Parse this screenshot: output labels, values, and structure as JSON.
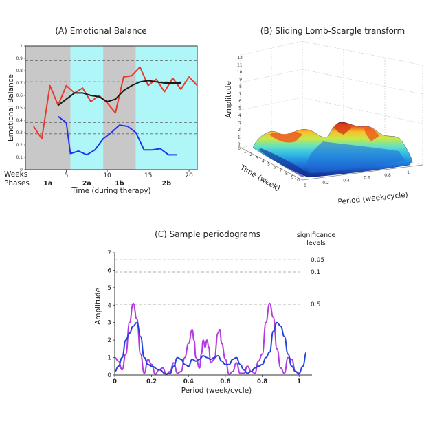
{
  "chart_data": [
    {
      "panel": "A",
      "type": "line",
      "title": "(A) Emotional Balance",
      "xlabel": "Time (during therapy)",
      "ylabel": "Emotional Balance",
      "xlim": [
        0,
        21
      ],
      "ylim": [
        0,
        1
      ],
      "row_labels": {
        "weeks": "Weeks",
        "phases": "Phases"
      },
      "x_ticks": [
        5,
        10,
        15,
        20
      ],
      "y_ticks": [
        "0",
        "0.1",
        "0.2",
        "0.3",
        "0.4",
        "0.5",
        "0.6",
        "0.7",
        "0.8",
        "0.9",
        "1"
      ],
      "phases": [
        {
          "label": "1a",
          "start": 0,
          "end": 5.5,
          "color": "#c8c8c8"
        },
        {
          "label": "2a",
          "start": 5.5,
          "end": 9.5,
          "color": "#aff6f8"
        },
        {
          "label": "1b",
          "start": 9.5,
          "end": 13.5,
          "color": "#c8c8c8"
        },
        {
          "label": "2b",
          "start": 13.5,
          "end": 21,
          "color": "#aff6f8"
        }
      ],
      "dashed_lines": [
        0.29,
        0.38,
        0.62,
        0.71,
        0.88
      ],
      "series": [
        {
          "color": "#e83a2c",
          "x": [
            1,
            2,
            3,
            4,
            5,
            6,
            7,
            8,
            9,
            10,
            11,
            12,
            13,
            14,
            15,
            16,
            17,
            18,
            19,
            20,
            21
          ],
          "y": [
            0.35,
            0.25,
            0.68,
            0.52,
            0.68,
            0.62,
            0.66,
            0.55,
            0.6,
            0.54,
            0.46,
            0.75,
            0.76,
            0.83,
            0.68,
            0.73,
            0.63,
            0.74,
            0.65,
            0.75,
            0.68
          ]
        },
        {
          "color": "#1a1a1a",
          "x": [
            4,
            5,
            6,
            7,
            8,
            9,
            10,
            11,
            12,
            13,
            14,
            15,
            16,
            17,
            18,
            19
          ],
          "y": [
            0.52,
            0.57,
            0.62,
            0.62,
            0.6,
            0.59,
            0.55,
            0.57,
            0.64,
            0.68,
            0.71,
            0.72,
            0.71,
            0.7,
            0.7,
            0.7
          ]
        },
        {
          "color": "#2233ee",
          "x": [
            4,
            5,
            5.5,
            6.5,
            7.5,
            8.5,
            9.5,
            10.5,
            11.5,
            12.5,
            13.5,
            14.5,
            15.5,
            16.5,
            17.5,
            18.5
          ],
          "y": [
            0.43,
            0.38,
            0.13,
            0.15,
            0.12,
            0.16,
            0.25,
            0.3,
            0.36,
            0.35,
            0.3,
            0.16,
            0.16,
            0.17,
            0.12,
            0.12
          ]
        }
      ]
    },
    {
      "panel": "B",
      "type": "surface",
      "title": "(B) Sliding Lomb-Scargle transform",
      "xlabel": "Period (week/cycle)",
      "ylabel": "Time (week)",
      "zlabel": "Amplitude",
      "x_ticks": [
        "0",
        "0.2",
        "0.4",
        "0.6",
        "0.8",
        "1"
      ],
      "z_ticks": [
        "12",
        "11",
        "10",
        "9",
        "8",
        "7",
        "6",
        "5",
        "4",
        "3",
        "2",
        "1",
        "0"
      ],
      "time_ticks": [
        "0",
        "1",
        "2",
        "3",
        "4",
        "5",
        "6",
        "7",
        "8",
        "9",
        "10"
      ],
      "colormap": [
        "#102a8a",
        "#1f6bd6",
        "#2fb3e8",
        "#5ee0c8",
        "#c6e94b",
        "#f6c12c",
        "#ee5a1e",
        "#9b1a12"
      ]
    },
    {
      "panel": "C",
      "type": "line",
      "title": "(C) Sample periodograms",
      "xlabel": "Period (week/cycle)",
      "ylabel": "Amplitude",
      "xlim": [
        0,
        1.07
      ],
      "ylim": [
        0,
        7
      ],
      "x_ticks": [
        {
          "value": 0,
          "label": "0"
        },
        {
          "value": 0.2,
          "label": "0.2"
        },
        {
          "value": 0.4,
          "label": "0.4"
        },
        {
          "value": 0.6,
          "label": "0.6"
        },
        {
          "value": 0.8,
          "label": "0.8"
        },
        {
          "value": 1,
          "label": "1"
        }
      ],
      "y_ticks": [
        "0",
        "1",
        "2",
        "3",
        "4",
        "5",
        "6",
        "7"
      ],
      "significance_title": [
        "significance",
        "levels"
      ],
      "significance_levels": [
        {
          "label": "0.05",
          "value": 6.6
        },
        {
          "label": "0.1",
          "value": 5.9
        },
        {
          "label": "0.5",
          "value": 4.05
        }
      ],
      "series": [
        {
          "color": "#b23ae0",
          "x": [
            0,
            0.02,
            0.04,
            0.06,
            0.08,
            0.1,
            0.12,
            0.14,
            0.16,
            0.18,
            0.2,
            0.22,
            0.24,
            0.26,
            0.28,
            0.3,
            0.32,
            0.34,
            0.36,
            0.38,
            0.4,
            0.42,
            0.43,
            0.44,
            0.46,
            0.47,
            0.48,
            0.49,
            0.5,
            0.51,
            0.52,
            0.54,
            0.56,
            0.57,
            0.58,
            0.6,
            0.62,
            0.64,
            0.66,
            0.68,
            0.7,
            0.72,
            0.74,
            0.76,
            0.78,
            0.8,
            0.82,
            0.84,
            0.86,
            0.88,
            0.9,
            0.92,
            0.94,
            0.96,
            0.98,
            1.0
          ],
          "y": [
            1.0,
            0.8,
            0.3,
            1.2,
            3.0,
            4.1,
            3.2,
            1.2,
            0.1,
            0.9,
            0.6,
            0.05,
            0.3,
            0.4,
            0.05,
            0.2,
            0.7,
            0.1,
            0.2,
            1.0,
            1.8,
            2.6,
            2.0,
            1.0,
            0.4,
            1.2,
            2.0,
            1.6,
            2.0,
            1.6,
            0.7,
            0.9,
            2.4,
            2.6,
            1.8,
            0.9,
            0.05,
            0.2,
            0.7,
            0.1,
            0.1,
            0.5,
            0.2,
            0.1,
            0.8,
            1.2,
            3.0,
            4.1,
            3.3,
            1.5,
            0.4,
            0.1,
            1.0,
            0.9,
            0.2,
            0.05
          ]
        },
        {
          "color": "#2244dd",
          "x": [
            0,
            0.02,
            0.04,
            0.06,
            0.08,
            0.1,
            0.12,
            0.14,
            0.16,
            0.18,
            0.2,
            0.24,
            0.28,
            0.3,
            0.32,
            0.34,
            0.36,
            0.38,
            0.4,
            0.42,
            0.44,
            0.46,
            0.48,
            0.5,
            0.52,
            0.54,
            0.56,
            0.58,
            0.6,
            0.62,
            0.64,
            0.66,
            0.68,
            0.7,
            0.72,
            0.74,
            0.76,
            0.78,
            0.8,
            0.82,
            0.84,
            0.86,
            0.88,
            0.9,
            0.92,
            0.94,
            0.96,
            0.98,
            1.0,
            1.02,
            1.04
          ],
          "y": [
            0.2,
            0.5,
            1.0,
            2.0,
            2.4,
            2.8,
            3.0,
            2.2,
            1.0,
            0.6,
            0.5,
            0.3,
            0.05,
            0.1,
            0.5,
            1.0,
            0.9,
            0.6,
            0.5,
            0.9,
            0.8,
            0.9,
            1.1,
            1.0,
            0.9,
            1.0,
            1.1,
            0.8,
            0.6,
            0.6,
            0.9,
            1.0,
            0.6,
            0.3,
            0.1,
            0.2,
            0.4,
            0.5,
            0.6,
            1.0,
            1.3,
            2.5,
            3.0,
            2.8,
            2.2,
            1.2,
            0.5,
            0.2,
            0.1,
            0.5,
            1.3
          ]
        }
      ]
    }
  ]
}
